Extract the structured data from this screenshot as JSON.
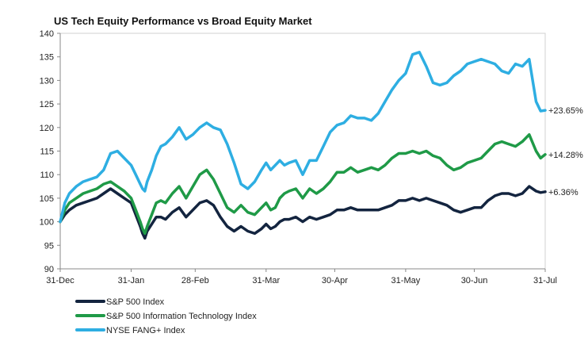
{
  "chart_data": {
    "type": "line",
    "title": "US Tech Equity Performance  vs Broad  Equity Market",
    "xlabel": "",
    "ylabel": "",
    "ylim": [
      90,
      140
    ],
    "yticks": [
      90,
      95,
      100,
      105,
      110,
      115,
      120,
      125,
      130,
      135,
      140
    ],
    "x_ticks": [
      "31-Dec",
      "31-Jan",
      "28-Feb",
      "31-Mar",
      "30-Apr",
      "31-May",
      "30-Jun",
      "31-Jul"
    ],
    "x_tick_days": [
      0,
      31,
      59,
      90,
      120,
      151,
      181,
      212
    ],
    "grid": false,
    "legend_position": "bottom-left",
    "series": [
      {
        "name": "S&P 500 Index",
        "color": "#13243f",
        "end_label": "+6.36%",
        "x": [
          0,
          2,
          4,
          7,
          10,
          13,
          16,
          19,
          22,
          25,
          28,
          31,
          33,
          35,
          36,
          37,
          38,
          40,
          42,
          44,
          46,
          49,
          52,
          55,
          58,
          61,
          64,
          67,
          70,
          73,
          76,
          79,
          82,
          85,
          88,
          90,
          92,
          94,
          96,
          98,
          100,
          103,
          106,
          109,
          112,
          115,
          118,
          121,
          124,
          127,
          130,
          133,
          136,
          139,
          142,
          145,
          148,
          151,
          154,
          157,
          160,
          163,
          166,
          169,
          172,
          175,
          178,
          181,
          184,
          187,
          190,
          193,
          196,
          199,
          202,
          205,
          208,
          210,
          212
        ],
        "y": [
          100,
          101.5,
          102.5,
          103.5,
          104,
          104.5,
          105,
          106,
          107,
          106,
          105,
          104,
          101.5,
          99,
          97.5,
          96.5,
          98,
          99.5,
          101,
          101,
          100.5,
          102,
          103,
          101,
          102.5,
          104,
          104.5,
          103.5,
          101,
          99,
          98,
          99,
          98,
          97.5,
          98.5,
          99.5,
          98.5,
          99,
          100,
          100.5,
          100.5,
          101,
          100,
          101,
          100.5,
          101,
          101.5,
          102.5,
          102.5,
          103,
          102.5,
          102.5,
          102.5,
          102.5,
          103,
          103.5,
          104.5,
          104.5,
          105,
          104.5,
          105,
          104.5,
          104,
          103.5,
          102.5,
          102,
          102.5,
          103,
          103,
          104.5,
          105.5,
          106,
          106,
          105.5,
          106,
          107.5,
          106.5,
          106.2,
          106.36
        ]
      },
      {
        "name": "S&P 500 Information Technology Index",
        "color": "#1f9a47",
        "end_label": "+14.28%",
        "x": [
          0,
          2,
          4,
          7,
          10,
          13,
          16,
          19,
          22,
          25,
          28,
          31,
          33,
          35,
          36,
          37,
          38,
          40,
          42,
          44,
          46,
          49,
          52,
          55,
          58,
          61,
          64,
          67,
          70,
          73,
          76,
          79,
          82,
          85,
          88,
          90,
          92,
          94,
          96,
          98,
          100,
          103,
          106,
          109,
          112,
          115,
          118,
          121,
          124,
          127,
          130,
          133,
          136,
          139,
          142,
          145,
          148,
          151,
          154,
          157,
          160,
          163,
          166,
          169,
          172,
          175,
          178,
          181,
          184,
          187,
          190,
          193,
          196,
          199,
          202,
          205,
          208,
          210,
          212
        ],
        "y": [
          100,
          102.5,
          104,
          105,
          106,
          106.5,
          107,
          108,
          108.5,
          107.5,
          106.5,
          105,
          102.5,
          100,
          98.5,
          97.5,
          99,
          101.5,
          104,
          104.5,
          104,
          106,
          107.5,
          105,
          107.5,
          110,
          111,
          109,
          106,
          103,
          102,
          103.5,
          102,
          101.5,
          103,
          104,
          102.5,
          103,
          105,
          106,
          106.5,
          107,
          105,
          107,
          106,
          107,
          108.5,
          110.5,
          110.5,
          111.5,
          110.5,
          111,
          111.5,
          111,
          112,
          113.5,
          114.5,
          114.5,
          115,
          114.5,
          115,
          114,
          113.5,
          112,
          111,
          111.5,
          112.5,
          113,
          113.5,
          115,
          116.5,
          117,
          116.5,
          116,
          117,
          118.5,
          115,
          113.5,
          114.28
        ]
      },
      {
        "name": "NYSE FANG+ Index",
        "color": "#2eaee2",
        "end_label": "+23.65%",
        "x": [
          0,
          2,
          4,
          7,
          10,
          13,
          16,
          19,
          22,
          25,
          28,
          31,
          33,
          35,
          36,
          37,
          38,
          40,
          42,
          44,
          46,
          49,
          52,
          55,
          58,
          61,
          64,
          67,
          70,
          73,
          76,
          79,
          82,
          85,
          88,
          90,
          92,
          94,
          96,
          98,
          100,
          103,
          106,
          109,
          112,
          115,
          118,
          121,
          124,
          127,
          130,
          133,
          136,
          139,
          142,
          145,
          148,
          151,
          154,
          157,
          160,
          163,
          166,
          169,
          172,
          175,
          178,
          181,
          184,
          187,
          190,
          193,
          196,
          199,
          202,
          205,
          208,
          210,
          212
        ],
        "y": [
          100,
          104,
          106,
          107.5,
          108.5,
          109,
          109.5,
          111,
          114.5,
          115,
          113.5,
          112,
          110,
          108,
          107,
          106.5,
          108.5,
          111,
          114,
          116,
          116.5,
          118,
          120,
          117.5,
          118.5,
          120,
          121,
          120,
          119.5,
          116.5,
          112.5,
          108,
          107,
          108.5,
          111,
          112.5,
          111,
          112,
          113,
          112,
          112.5,
          113,
          110,
          113,
          113,
          116,
          119,
          120.5,
          121,
          122.5,
          122,
          122,
          121.5,
          123,
          125.5,
          128,
          130,
          131.5,
          135.5,
          136,
          133,
          129.5,
          129,
          129.5,
          131,
          132,
          133.5,
          134,
          134.5,
          134,
          133.5,
          132,
          131.5,
          133.5,
          133,
          134.5,
          125.5,
          123.5,
          123.65
        ]
      }
    ]
  }
}
